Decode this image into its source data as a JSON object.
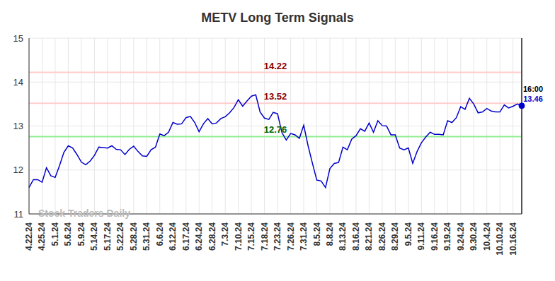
{
  "chart_data": {
    "type": "line",
    "title": "METV Long Term Signals",
    "categories": [
      "4.22.24",
      null,
      null,
      "4.25.24",
      null,
      null,
      "5.1.24",
      null,
      null,
      "5.6.24",
      null,
      null,
      "5.9.24",
      null,
      null,
      "5.14.24",
      null,
      null,
      "5.17.24",
      null,
      null,
      "5.22.24",
      null,
      null,
      "5.28.24",
      null,
      null,
      "5.31.24",
      null,
      null,
      "6.6.24",
      null,
      null,
      "6.12.24",
      null,
      null,
      "6.17.24",
      null,
      null,
      "6.24.24",
      null,
      null,
      "6.28.24",
      null,
      null,
      "7.3.24",
      null,
      null,
      "7.10.24",
      null,
      null,
      "7.15.24",
      null,
      null,
      "7.18.24",
      null,
      null,
      "7.23.24",
      null,
      null,
      "7.26.24",
      null,
      null,
      "7.31.24",
      null,
      null,
      "8.5.24",
      null,
      null,
      "8.8.24",
      null,
      null,
      "8.13.24",
      null,
      null,
      "8.16.24",
      null,
      null,
      "8.21.24",
      null,
      null,
      "8.26.24",
      null,
      null,
      "8.29.24",
      null,
      null,
      "9.5.24",
      null,
      null,
      "9.11.24",
      null,
      null,
      "9.16.24",
      null,
      null,
      "9.19.24",
      null,
      null,
      "9.24.24",
      null,
      null,
      "9.30.24",
      null,
      null,
      "10.4.24",
      null,
      null,
      "10.10.24",
      null,
      null,
      "10.16.24",
      null,
      null
    ],
    "values": [
      11.6,
      11.78,
      11.78,
      11.72,
      12.05,
      11.87,
      11.83,
      12.1,
      12.4,
      12.55,
      12.5,
      12.35,
      12.18,
      12.12,
      12.2,
      12.33,
      12.52,
      12.51,
      12.5,
      12.55,
      12.47,
      12.46,
      12.35,
      12.47,
      12.54,
      12.42,
      12.32,
      12.31,
      12.46,
      12.52,
      12.82,
      12.78,
      12.86,
      13.08,
      13.04,
      13.05,
      13.19,
      13.22,
      13.08,
      12.87,
      13.05,
      13.17,
      13.05,
      13.07,
      13.17,
      13.21,
      13.3,
      13.42,
      13.6,
      13.45,
      13.57,
      13.68,
      13.71,
      13.32,
      13.18,
      13.15,
      13.31,
      13.28,
      12.85,
      12.68,
      12.83,
      12.8,
      12.72,
      13.02,
      12.55,
      12.15,
      11.77,
      11.75,
      11.6,
      12.03,
      12.15,
      12.17,
      12.52,
      12.46,
      12.7,
      12.78,
      12.94,
      12.88,
      13.07,
      12.86,
      13.12,
      13.01,
      13.0,
      12.8,
      12.8,
      12.5,
      12.46,
      12.5,
      12.15,
      12.42,
      12.62,
      12.75,
      12.86,
      12.81,
      12.81,
      12.8,
      13.12,
      13.08,
      13.19,
      13.44,
      13.38,
      13.63,
      13.5,
      13.3,
      13.32,
      13.4,
      13.34,
      13.32,
      13.32,
      13.48,
      13.41,
      13.45,
      13.5,
      13.46
    ],
    "color": "#0000cc",
    "ylim": [
      11,
      15
    ],
    "yticks": [
      11,
      12,
      13,
      14,
      15
    ],
    "grid": true,
    "reference_lines": [
      {
        "value": 14.22,
        "color": "#ffcccc",
        "label_color": "#8b0000"
      },
      {
        "value": 13.52,
        "color": "#ffcccc",
        "label_color": "#8b0000"
      },
      {
        "value": 12.76,
        "color": "#90ee90",
        "label_color": "#006400"
      }
    ],
    "last_time": "16:00",
    "watermark": "Stock Traders Daily"
  }
}
